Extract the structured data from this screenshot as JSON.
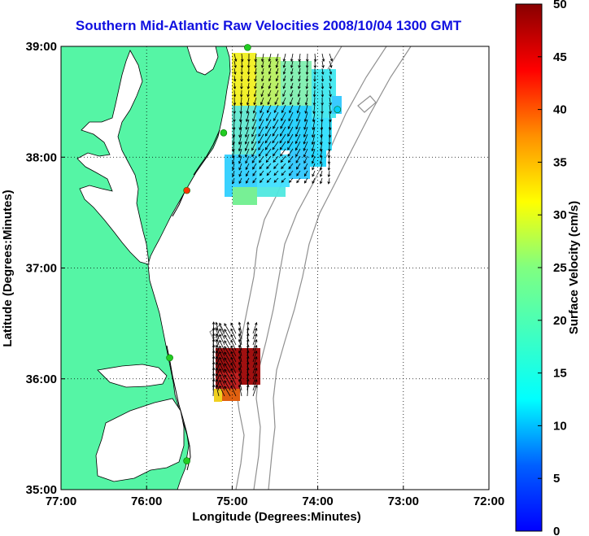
{
  "title": "Southern Mid-Atlantic Raw Velocities 2008/10/04 1300 GMT",
  "map": {
    "xlabel": "Longitude (Degrees:Minutes)",
    "ylabel": "Latitude (Degrees:Minutes)",
    "lon_range": [
      -77,
      -72
    ],
    "lat_range": [
      35,
      39
    ],
    "lon_ticks": [
      -77,
      -76,
      -75,
      -74,
      -73,
      -72
    ],
    "lon_tick_labels": [
      "77:00",
      "76:00",
      "75:00",
      "74:00",
      "73:00",
      "72:00"
    ],
    "lat_ticks": [
      35,
      36,
      37,
      38,
      39
    ],
    "lat_tick_labels": [
      "35:00",
      "36:00",
      "37:00",
      "38:00",
      "39:00"
    ],
    "grid": "dotted",
    "land_color": "#55f5a5",
    "bathymetry_color": "#909090",
    "colorbar": {
      "label": "Surface Velocity (cm/s)",
      "min": 0,
      "max": 50,
      "tick_values": [
        0,
        5,
        10,
        15,
        20,
        25,
        30,
        35,
        40,
        45,
        50
      ],
      "tick_labels": [
        "0",
        "5",
        "10",
        "15",
        "20",
        "25",
        "30",
        "35",
        "40",
        "45",
        "50"
      ],
      "colormap": "jet"
    },
    "radar_sites": [
      {
        "lon": -74.82,
        "lat": 38.99,
        "color": "#22cc22"
      },
      {
        "lon": -75.1,
        "lat": 38.22,
        "color": "#22cc22"
      },
      {
        "lon": -75.53,
        "lat": 37.7,
        "color": "#ff3300"
      },
      {
        "lon": -75.73,
        "lat": 36.19,
        "color": "#22cc22"
      },
      {
        "lon": -75.53,
        "lat": 35.26,
        "color": "#22cc22"
      },
      {
        "lon": -73.77,
        "lat": 38.43,
        "color": "#00d0ff"
      }
    ]
  }
}
